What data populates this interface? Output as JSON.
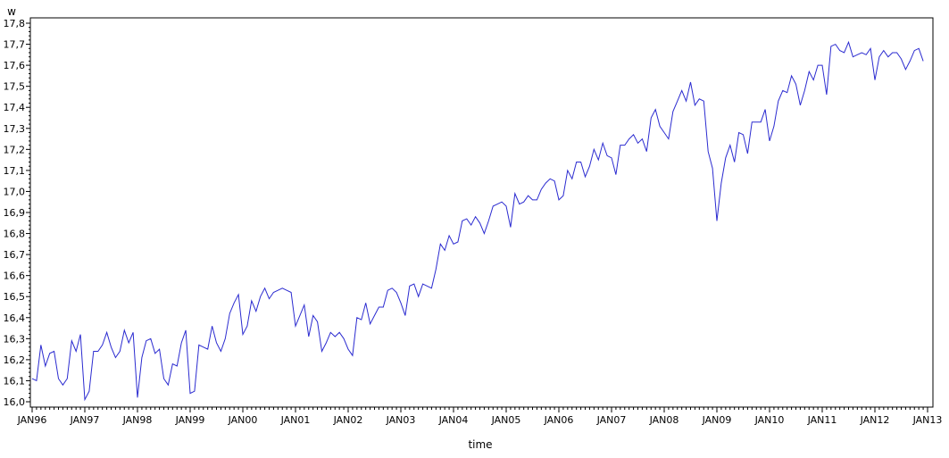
{
  "chart_data": {
    "type": "line",
    "xlabel": "time",
    "ylabel": "w",
    "ylim": [
      16.0,
      17.8
    ],
    "y_ticks": [
      "16,0",
      "16,1",
      "16,2",
      "16,3",
      "16,4",
      "16,5",
      "16,6",
      "16,7",
      "16,8",
      "16,9",
      "17,0",
      "17,1",
      "17,2",
      "17,3",
      "17,4",
      "17,5",
      "17,6",
      "17,7",
      "17,8"
    ],
    "x_ticks": [
      "JAN96",
      "JAN97",
      "JAN98",
      "JAN99",
      "JAN00",
      "JAN01",
      "JAN02",
      "JAN03",
      "JAN04",
      "JAN05",
      "JAN06",
      "JAN07",
      "JAN08",
      "JAN09",
      "JAN10",
      "JAN11",
      "JAN12",
      "JAN13"
    ],
    "grid": false,
    "line_color": "#2b2bd0",
    "series": [
      {
        "x_range": [
          "JAN96",
          "DEC12"
        ],
        "values": [
          16.11,
          16.1,
          16.27,
          16.17,
          16.23,
          16.24,
          16.11,
          16.08,
          16.11,
          16.29,
          16.24,
          16.32,
          16.01,
          16.05,
          16.24,
          16.24,
          16.27,
          16.33,
          16.26,
          16.21,
          16.24,
          16.34,
          16.28,
          16.33,
          16.02,
          16.21,
          16.29,
          16.3,
          16.23,
          16.25,
          16.11,
          16.08,
          16.18,
          16.17,
          16.28,
          16.34,
          16.04,
          16.05,
          16.27,
          16.26,
          16.25,
          16.36,
          16.28,
          16.24,
          16.3,
          16.42,
          16.47,
          16.51,
          16.32,
          16.36,
          16.48,
          16.43,
          16.5,
          16.54,
          16.49,
          16.52,
          16.53,
          16.54,
          16.53,
          16.52,
          16.36,
          16.41,
          16.46,
          16.31,
          16.41,
          16.38,
          16.24,
          16.28,
          16.33,
          16.31,
          16.33,
          16.3,
          16.25,
          16.22,
          16.4,
          16.39,
          16.47,
          16.37,
          16.41,
          16.45,
          16.45,
          16.53,
          16.54,
          16.52,
          16.47,
          16.41,
          16.55,
          16.56,
          16.5,
          16.56,
          16.55,
          16.54,
          16.63,
          16.75,
          16.72,
          16.79,
          16.75,
          16.76,
          16.86,
          16.87,
          16.84,
          16.88,
          16.85,
          16.8,
          16.86,
          16.93,
          16.94,
          16.95,
          16.93,
          16.83,
          16.99,
          16.94,
          16.95,
          16.98,
          16.96,
          16.96,
          17.01,
          17.04,
          17.06,
          17.05,
          16.96,
          16.98,
          17.1,
          17.06,
          17.14,
          17.14,
          17.07,
          17.12,
          17.2,
          17.15,
          17.23,
          17.17,
          17.16,
          17.08,
          17.22,
          17.22,
          17.25,
          17.27,
          17.23,
          17.25,
          17.19,
          17.35,
          17.39,
          17.31,
          17.28,
          17.25,
          17.38,
          17.43,
          17.48,
          17.43,
          17.52,
          17.41,
          17.44,
          17.43,
          17.19,
          17.11,
          16.86,
          17.04,
          17.16,
          17.22,
          17.14,
          17.28,
          17.27,
          17.18,
          17.33,
          17.33,
          17.33,
          17.39,
          17.24,
          17.31,
          17.43,
          17.48,
          17.47,
          17.55,
          17.51,
          17.41,
          17.48,
          17.57,
          17.53,
          17.6,
          17.6,
          17.46,
          17.69,
          17.7,
          17.67,
          17.66,
          17.71,
          17.64,
          17.65,
          17.66,
          17.65,
          17.68,
          17.53,
          17.64,
          17.67,
          17.64,
          17.66,
          17.66,
          17.63,
          17.58,
          17.62,
          17.67,
          17.68,
          17.62
        ]
      }
    ]
  }
}
